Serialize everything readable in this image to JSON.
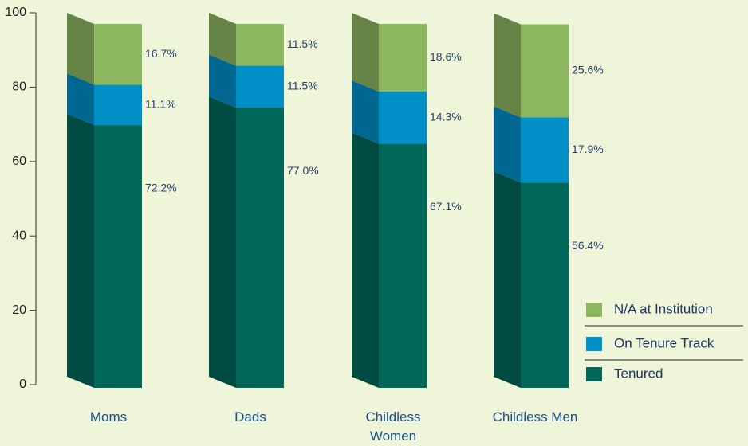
{
  "chart_data": {
    "type": "bar3d_stacked",
    "categories": [
      "Moms",
      "Dads",
      "Childless Women",
      "Childless Men"
    ],
    "series": [
      {
        "name": "Tenured",
        "color": "#00685a",
        "values": [
          72.2,
          77.0,
          67.1,
          56.4
        ],
        "value_labels": [
          "72.2%",
          "77.0%",
          "67.1%",
          "56.4%"
        ]
      },
      {
        "name": "On Tenure Track",
        "color": "#0090c8",
        "values": [
          11.1,
          11.5,
          14.3,
          17.9
        ],
        "value_labels": [
          "11.1%",
          "11.5%",
          "14.3%",
          "17.9%"
        ]
      },
      {
        "name": "N/A at Institution",
        "color": "#8db860",
        "values": [
          16.7,
          11.5,
          18.6,
          25.6
        ],
        "value_labels": [
          "16.7%",
          "11.5%",
          "18.6%",
          "25.6%"
        ]
      }
    ],
    "ylim": [
      0,
      100
    ],
    "yticks": [
      0,
      20,
      40,
      60,
      80,
      100
    ]
  }
}
